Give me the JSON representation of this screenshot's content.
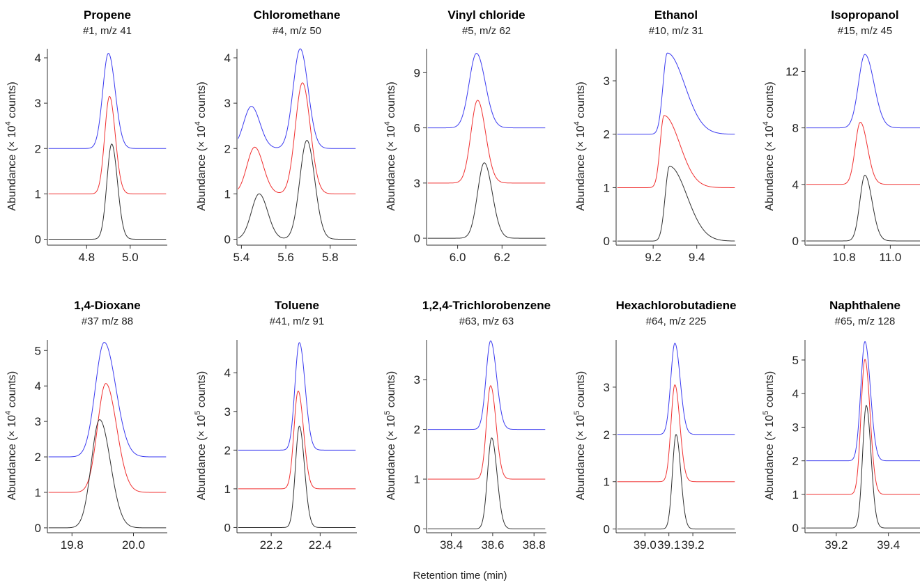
{
  "figure": {
    "xlabel": "Retention time (min)",
    "colors": {
      "top": "#3a3af0",
      "middle": "#f03030",
      "bottom": "#303030"
    }
  },
  "chart_data": [
    {
      "type": "line",
      "title": "Propene",
      "subtitle": "#1, m/z 41",
      "ylabel": "Abundance (× 10",
      "ylabel_exp": "4",
      "ylabel_end": " counts)",
      "xlim": [
        4.62,
        5.17
      ],
      "ylim": [
        -0.1,
        4.2
      ],
      "xticks": [
        4.8,
        5.0
      ],
      "xtick_labels": [
        "4.8",
        "5.0"
      ],
      "yticks": [
        0,
        1,
        2,
        3,
        4
      ],
      "ytick_labels": [
        "0",
        "1",
        "2",
        "3",
        "4"
      ],
      "series": [
        {
          "baseline": 2,
          "peaks": [
            {
              "rt": 4.9,
              "height": 2.1,
              "width": 0.026,
              "tail": 1.2
            }
          ]
        },
        {
          "baseline": 1,
          "peaks": [
            {
              "rt": 4.905,
              "height": 2.15,
              "width": 0.022,
              "tail": 1.2
            }
          ]
        },
        {
          "baseline": 0,
          "peaks": [
            {
              "rt": 4.915,
              "height": 2.1,
              "width": 0.022,
              "tail": 1.2
            }
          ]
        }
      ]
    },
    {
      "type": "line",
      "title": "Chloromethane",
      "subtitle": "#4, m/z 50",
      "ylabel": "Abundance (× 10",
      "ylabel_exp": "4",
      "ylabel_end": " counts)",
      "xlim": [
        5.38,
        5.92
      ],
      "ylim": [
        -0.1,
        4.2
      ],
      "xticks": [
        5.4,
        5.6,
        5.8
      ],
      "xtick_labels": [
        "5.4",
        "5.6",
        "5.8"
      ],
      "yticks": [
        0,
        1,
        2,
        3,
        4
      ],
      "ytick_labels": [
        "0",
        "1",
        "2",
        "3",
        "4"
      ],
      "series": [
        {
          "baseline": 2,
          "peaks": [
            {
              "rt": 5.445,
              "height": 0.93,
              "width": 0.035,
              "tail": 1.1
            },
            {
              "rt": 5.665,
              "height": 2.2,
              "width": 0.032,
              "tail": 1.1
            }
          ]
        },
        {
          "baseline": 1,
          "peaks": [
            {
              "rt": 5.46,
              "height": 1.03,
              "width": 0.035,
              "tail": 1.1
            },
            {
              "rt": 5.675,
              "height": 2.45,
              "width": 0.032,
              "tail": 1.1
            }
          ]
        },
        {
          "baseline": 0,
          "peaks": [
            {
              "rt": 5.48,
              "height": 1.0,
              "width": 0.035,
              "tail": 1.1
            },
            {
              "rt": 5.695,
              "height": 2.18,
              "width": 0.032,
              "tail": 1.1
            }
          ]
        }
      ]
    },
    {
      "type": "line",
      "title": "Vinyl chloride",
      "subtitle": "#5, m/z 62",
      "ylabel": "Abundance (× 10",
      "ylabel_exp": "4",
      "ylabel_end": " counts)",
      "xlim": [
        5.86,
        6.4
      ],
      "ylim": [
        -0.3,
        10.3
      ],
      "xticks": [
        6.0,
        6.2
      ],
      "xtick_labels": [
        "6.0",
        "6.2"
      ],
      "yticks": [
        0,
        3,
        6,
        9
      ],
      "ytick_labels": [
        "0",
        "3",
        "6",
        "9"
      ],
      "series": [
        {
          "baseline": 6,
          "peaks": [
            {
              "rt": 6.085,
              "height": 4.05,
              "width": 0.033,
              "tail": 1.2
            }
          ]
        },
        {
          "baseline": 3,
          "peaks": [
            {
              "rt": 6.09,
              "height": 4.5,
              "width": 0.03,
              "tail": 1.2
            }
          ]
        },
        {
          "baseline": 0,
          "peaks": [
            {
              "rt": 6.12,
              "height": 4.1,
              "width": 0.03,
              "tail": 1.2
            }
          ]
        }
      ]
    },
    {
      "type": "line",
      "title": "Ethanol",
      "subtitle": "#10, m/z 31",
      "ylabel": "Abundance (× 10",
      "ylabel_exp": "4",
      "ylabel_end": " counts)",
      "xlim": [
        9.03,
        9.58
      ],
      "ylim": [
        -0.05,
        3.6
      ],
      "xticks": [
        9.2,
        9.4
      ],
      "xtick_labels": [
        "9.2",
        "9.4"
      ],
      "yticks": [
        0,
        1,
        2,
        3
      ],
      "ytick_labels": [
        "0",
        "1",
        "2",
        "3"
      ],
      "series": [
        {
          "baseline": 2,
          "peaks": [
            {
              "rt": 9.265,
              "height": 1.52,
              "width": 0.02,
              "tail": 4
            }
          ]
        },
        {
          "baseline": 1,
          "peaks": [
            {
              "rt": 9.25,
              "height": 1.35,
              "width": 0.018,
              "tail": 4
            }
          ]
        },
        {
          "baseline": 0,
          "peaks": [
            {
              "rt": 9.275,
              "height": 1.4,
              "width": 0.02,
              "tail": 4
            }
          ]
        }
      ]
    },
    {
      "type": "line",
      "title": "Isopropanol",
      "subtitle": "#15, m/z 45",
      "ylabel": "Abundance (× 10",
      "ylabel_exp": "4",
      "ylabel_end": " counts)",
      "xlim": [
        10.63,
        11.15
      ],
      "ylim": [
        -0.2,
        13.6
      ],
      "xticks": [
        10.8,
        11.0
      ],
      "xtick_labels": [
        "10.8",
        "11.0"
      ],
      "yticks": [
        0,
        4,
        8,
        12
      ],
      "ytick_labels": [
        "0",
        "4",
        "8",
        "12"
      ],
      "series": [
        {
          "baseline": 8,
          "peaks": [
            {
              "rt": 10.89,
              "height": 5.2,
              "width": 0.028,
              "tail": 1.4
            }
          ]
        },
        {
          "baseline": 4,
          "peaks": [
            {
              "rt": 10.87,
              "height": 4.4,
              "width": 0.022,
              "tail": 1.4
            }
          ]
        },
        {
          "baseline": 0,
          "peaks": [
            {
              "rt": 10.89,
              "height": 4.65,
              "width": 0.022,
              "tail": 1.4
            }
          ]
        }
      ]
    },
    {
      "type": "line",
      "title": "1,4-Dioxane",
      "subtitle": "#37 m/z 88",
      "ylabel": "Abundance (× 10",
      "ylabel_exp": "4",
      "ylabel_end": " counts)",
      "xlim": [
        19.72,
        20.11
      ],
      "ylim": [
        -0.1,
        5.3
      ],
      "xticks": [
        19.8,
        20.0
      ],
      "xtick_labels": [
        "19.8",
        "20.0"
      ],
      "yticks": [
        0,
        1,
        2,
        3,
        4,
        5
      ],
      "ytick_labels": [
        "0",
        "1",
        "2",
        "3",
        "4",
        "5"
      ],
      "series": [
        {
          "baseline": 2,
          "peaks": [
            {
              "rt": 19.905,
              "height": 3.23,
              "width": 0.029,
              "tail": 1.3
            }
          ]
        },
        {
          "baseline": 1,
          "peaks": [
            {
              "rt": 19.91,
              "height": 3.07,
              "width": 0.027,
              "tail": 1.3
            }
          ]
        },
        {
          "baseline": 0,
          "peaks": [
            {
              "rt": 19.89,
              "height": 3.05,
              "width": 0.027,
              "tail": 1.3
            }
          ]
        }
      ]
    },
    {
      "type": "line",
      "title": "Toluene",
      "subtitle": "#41, m/z 91",
      "ylabel": "Abundance (× 10",
      "ylabel_exp": "5",
      "ylabel_end": " counts)",
      "xlim": [
        22.06,
        22.55
      ],
      "ylim": [
        -0.1,
        4.85
      ],
      "xticks": [
        22.2,
        22.4
      ],
      "xtick_labels": [
        "22.2",
        "22.4"
      ],
      "yticks": [
        0,
        1,
        2,
        3,
        4
      ],
      "ytick_labels": [
        "0",
        "1",
        "2",
        "3",
        "4"
      ],
      "series": [
        {
          "baseline": 2,
          "peaks": [
            {
              "rt": 22.315,
              "height": 2.78,
              "width": 0.018,
              "tail": 1.3
            }
          ]
        },
        {
          "baseline": 1,
          "peaks": [
            {
              "rt": 22.31,
              "height": 2.53,
              "width": 0.017,
              "tail": 1.3
            }
          ]
        },
        {
          "baseline": 0,
          "peaks": [
            {
              "rt": 22.315,
              "height": 2.62,
              "width": 0.016,
              "tail": 1.3
            }
          ]
        }
      ]
    },
    {
      "type": "line",
      "title": "1,2,4-Trichlorobenzene",
      "subtitle": "#63, m/z 63",
      "ylabel": "Abundance (× 10",
      "ylabel_exp": "5",
      "ylabel_end": " counts)",
      "xlim": [
        38.28,
        38.86
      ],
      "ylim": [
        -0.05,
        3.8
      ],
      "xticks": [
        38.4,
        38.6,
        38.8
      ],
      "xtick_labels": [
        "38.4",
        "38.6",
        "38.8"
      ],
      "yticks": [
        0,
        1,
        2,
        3
      ],
      "ytick_labels": [
        "0",
        "1",
        "2",
        "3"
      ],
      "series": [
        {
          "baseline": 2,
          "peaks": [
            {
              "rt": 38.59,
              "height": 1.78,
              "width": 0.022,
              "tail": 1.3
            }
          ]
        },
        {
          "baseline": 1,
          "peaks": [
            {
              "rt": 38.59,
              "height": 1.88,
              "width": 0.02,
              "tail": 1.3
            }
          ]
        },
        {
          "baseline": 0,
          "peaks": [
            {
              "rt": 38.595,
              "height": 1.83,
              "width": 0.02,
              "tail": 1.3
            }
          ]
        }
      ]
    },
    {
      "type": "line",
      "title": "Hexachlorobutadiene",
      "subtitle": "#64, m/z 225",
      "ylabel": "Abundance (× 10",
      "ylabel_exp": "5",
      "ylabel_end": " counts)",
      "xlim": [
        38.88,
        39.38
      ],
      "ylim": [
        -0.05,
        4.0
      ],
      "xticks": [
        39.0,
        39.1,
        39.2
      ],
      "xtick_labels": [
        "39.0",
        "39.1",
        "39.2"
      ],
      "yticks": [
        0,
        1,
        2,
        3
      ],
      "ytick_labels": [
        "0",
        "1",
        "2",
        "3"
      ],
      "series": [
        {
          "baseline": 2,
          "peaks": [
            {
              "rt": 39.125,
              "height": 1.93,
              "width": 0.017,
              "tail": 1.3
            }
          ]
        },
        {
          "baseline": 1,
          "peaks": [
            {
              "rt": 39.125,
              "height": 2.05,
              "width": 0.016,
              "tail": 1.3
            }
          ]
        },
        {
          "baseline": 0,
          "peaks": [
            {
              "rt": 39.13,
              "height": 2.0,
              "width": 0.015,
              "tail": 1.3
            }
          ]
        }
      ]
    },
    {
      "type": "line",
      "title": "Naphthalene",
      "subtitle": "#65, m/z 128",
      "ylabel": "Abundance (× 10",
      "ylabel_exp": "5",
      "ylabel_end": " counts)",
      "xlim": [
        39.08,
        39.54
      ],
      "ylim": [
        -0.1,
        5.6
      ],
      "xticks": [
        39.2,
        39.4
      ],
      "xtick_labels": [
        "39.2",
        "39.4"
      ],
      "yticks": [
        0,
        1,
        2,
        3,
        4,
        5
      ],
      "ytick_labels": [
        "0",
        "1",
        "2",
        "3",
        "4",
        "5"
      ],
      "series": [
        {
          "baseline": 2,
          "peaks": [
            {
              "rt": 39.31,
              "height": 3.55,
              "width": 0.016,
              "tail": 1.3
            }
          ]
        },
        {
          "baseline": 1,
          "peaks": [
            {
              "rt": 39.31,
              "height": 4.02,
              "width": 0.015,
              "tail": 1.3
            }
          ]
        },
        {
          "baseline": 0,
          "peaks": [
            {
              "rt": 39.315,
              "height": 3.65,
              "width": 0.014,
              "tail": 1.3
            }
          ]
        }
      ]
    }
  ]
}
